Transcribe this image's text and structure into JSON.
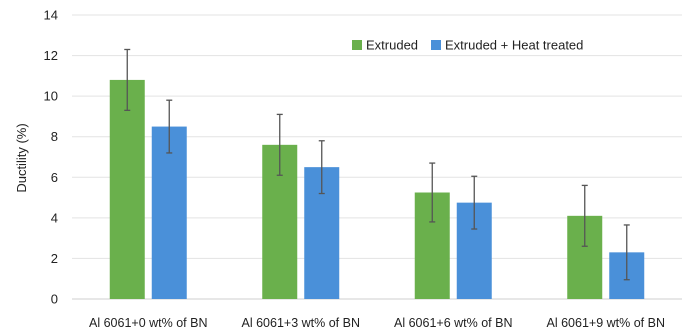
{
  "chart_data": {
    "type": "bar",
    "title": "",
    "xlabel": "",
    "ylabel": "Ductility (%)",
    "ylim": [
      0,
      14
    ],
    "yticks": [
      0,
      2,
      4,
      6,
      8,
      10,
      12,
      14
    ],
    "grid": "horizontal",
    "legend_position": "top-right",
    "categories": [
      "Al 6061+0 wt% of BN",
      "Al 6061+3 wt% of BN",
      "Al 6061+6 wt% of BN",
      "Al 6061+9 wt% of BN"
    ],
    "series": [
      {
        "name": "Extruded",
        "color": "#6ab04c",
        "values": [
          10.8,
          7.6,
          5.25,
          4.1
        ],
        "error": [
          1.5,
          1.5,
          1.45,
          1.5
        ]
      },
      {
        "name": "Extruded + Heat treated",
        "color": "#4a90d9",
        "values": [
          8.5,
          6.5,
          4.75,
          2.3
        ],
        "error": [
          1.3,
          1.3,
          1.3,
          1.35
        ]
      }
    ]
  }
}
